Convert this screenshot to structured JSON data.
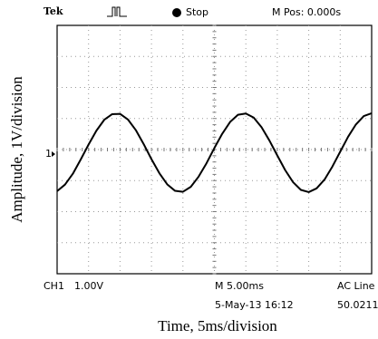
{
  "chart_data": {
    "type": "line",
    "brand": "Tek",
    "status": "Stop",
    "horizontal_position": "M Pos: 0.000s",
    "marker": "1",
    "channel_label": "CH1",
    "channel_scale": "1.00V",
    "timebase": "M 5.00ms",
    "date_time": "5-May-13 16:12",
    "trigger_source": "AC Line",
    "trigger_frequency": "50.0211",
    "x_label": "Time, 5ms/division",
    "y_label": "Amplitude, 1V/division",
    "xlim": [
      0,
      50
    ],
    "ylim": [
      -4,
      4
    ],
    "grid": true,
    "color": "#000000",
    "x": [
      0,
      1.25,
      2.5,
      3.75,
      5,
      6.25,
      7.5,
      8.75,
      10,
      11.25,
      12.5,
      13.75,
      15,
      16.25,
      17.5,
      18.75,
      20,
      21.25,
      22.5,
      23.75,
      25,
      26.25,
      27.5,
      28.75,
      30,
      31.25,
      32.5,
      33.75,
      35,
      36.25,
      37.5,
      38.75,
      40,
      41.25,
      42.5,
      43.75,
      45,
      46.25,
      47.5,
      48.75,
      50
    ],
    "values": [
      -1.34,
      -1.13,
      -0.78,
      -0.32,
      0.16,
      0.61,
      0.96,
      1.14,
      1.15,
      0.97,
      0.63,
      0.18,
      -0.31,
      -0.76,
      -1.12,
      -1.33,
      -1.36,
      -1.2,
      -0.87,
      -0.44,
      0.05,
      0.51,
      0.89,
      1.12,
      1.16,
      1.03,
      0.72,
      0.29,
      -0.19,
      -0.66,
      -1.05,
      -1.3,
      -1.37,
      -1.25,
      -0.97,
      -0.55,
      -0.07,
      0.41,
      0.81,
      1.08,
      1.17
    ]
  }
}
